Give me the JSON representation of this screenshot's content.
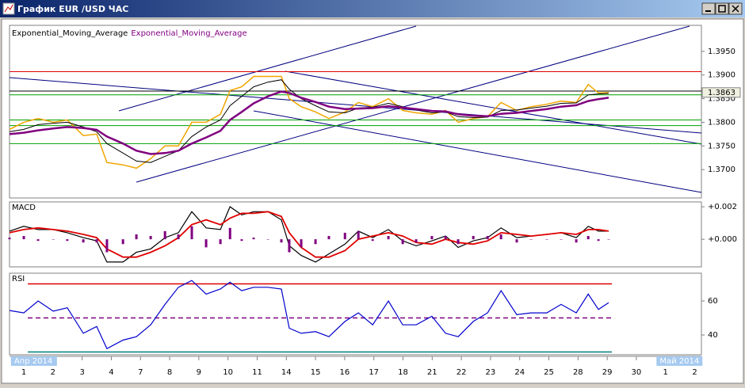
{
  "window": {
    "title": "График EUR /USD ЧАС"
  },
  "chart_data": [
    {
      "type": "line",
      "x": [
        -0.49,
        0,
        0.49,
        1.01,
        1.49,
        2.04,
        2.5,
        2.85,
        3.4,
        3.86,
        4.35,
        4.84,
        5.3,
        5.76,
        6.25,
        6.74,
        7.07,
        7.47,
        7.88,
        8.37,
        8.83,
        9.1,
        9.51,
        10,
        10.46,
        11.01,
        11.47,
        11.96,
        12.5,
        12.99,
        13.45,
        13.99,
        14.46,
        14.89,
        15.41,
        15.9,
        16.36,
        16.9,
        17.39,
        17.93,
        18.42,
        18.94,
        19.35,
        19.7,
        20.05
      ],
      "xlim": [
        -0.49,
        23.23
      ],
      "xticks": [
        {
          "value": 0,
          "label": "1"
        },
        {
          "value": 1,
          "label": "2"
        },
        {
          "value": 2,
          "label": "3"
        },
        {
          "value": 3,
          "label": "4"
        },
        {
          "value": 4,
          "label": "7"
        },
        {
          "value": 5,
          "label": "8"
        },
        {
          "value": 6,
          "label": "9"
        },
        {
          "value": 7,
          "label": "10"
        },
        {
          "value": 8,
          "label": "11"
        },
        {
          "value": 9,
          "label": "14"
        },
        {
          "value": 10,
          "label": "15"
        },
        {
          "value": 11,
          "label": "16"
        },
        {
          "value": 12,
          "label": "17"
        },
        {
          "value": 13,
          "label": "18"
        },
        {
          "value": 14,
          "label": "21"
        },
        {
          "value": 15,
          "label": "22"
        },
        {
          "value": 16,
          "label": "23"
        },
        {
          "value": 17,
          "label": "24"
        },
        {
          "value": 18,
          "label": "25"
        },
        {
          "value": 19,
          "label": "28"
        },
        {
          "value": 20,
          "label": "29"
        },
        {
          "value": 21,
          "label": "30"
        },
        {
          "value": 22,
          "label": "1"
        },
        {
          "value": 23,
          "label": "2"
        }
      ],
      "x_periods": [
        {
          "value": -0.44,
          "label": "Апр 2014"
        },
        {
          "value": 21.69,
          "label": "Май 2014"
        }
      ],
      "series": [
        {
          "color": "#f0a500",
          "values": [
            1.3785,
            1.38,
            1.3808,
            1.38,
            1.3805,
            1.3772,
            1.3775,
            1.3715,
            1.371,
            1.3703,
            1.3723,
            1.375,
            1.375,
            1.38,
            1.38,
            1.3817,
            1.3867,
            1.3875,
            1.3897,
            1.3897,
            1.3897,
            1.385,
            1.3833,
            1.3822,
            1.3808,
            1.3822,
            1.3842,
            1.3833,
            1.385,
            1.3825,
            1.382,
            1.3817,
            1.3825,
            1.38,
            1.3808,
            1.3812,
            1.3842,
            1.3825,
            1.3833,
            1.3838,
            1.3845,
            1.3842,
            1.388,
            1.3862,
            1.3863
          ]
        },
        {
          "name": "Exponential_Moving_Average",
          "color": "#000000",
          "values": [
            1.378,
            1.3785,
            1.3795,
            1.3798,
            1.38,
            1.379,
            1.378,
            1.3755,
            1.3735,
            1.3718,
            1.3715,
            1.3728,
            1.374,
            1.377,
            1.379,
            1.3805,
            1.3835,
            1.3855,
            1.3875,
            1.3885,
            1.389,
            1.387,
            1.385,
            1.3835,
            1.3822,
            1.382,
            1.383,
            1.3832,
            1.384,
            1.3833,
            1.3826,
            1.382,
            1.3822,
            1.3812,
            1.381,
            1.3811,
            1.3825,
            1.3826,
            1.383,
            1.3834,
            1.384,
            1.3841,
            1.3858,
            1.386,
            1.3861
          ]
        },
        {
          "name": "Exponential_Moving_Average",
          "color": "#800080",
          "values": [
            1.3775,
            1.3778,
            1.3783,
            1.3787,
            1.379,
            1.3788,
            1.3784,
            1.377,
            1.3755,
            1.374,
            1.3733,
            1.3735,
            1.374,
            1.3755,
            1.3768,
            1.3782,
            1.3805,
            1.3822,
            1.384,
            1.3855,
            1.3865,
            1.3862,
            1.3852,
            1.3843,
            1.3833,
            1.3828,
            1.3829,
            1.383,
            1.3834,
            1.3831,
            1.3828,
            1.3824,
            1.3823,
            1.3817,
            1.3814,
            1.3813,
            1.3818,
            1.382,
            1.3824,
            1.3828,
            1.3833,
            1.3836,
            1.3845,
            1.3849,
            1.3852
          ]
        }
      ],
      "ylim": [
        1.364,
        1.4005
      ],
      "yticks": [
        {
          "value": 1.37,
          "label": "1.3700"
        },
        {
          "value": 1.375,
          "label": "1.3750"
        },
        {
          "value": 1.38,
          "label": "1.3800"
        },
        {
          "value": 1.385,
          "label": "1.3850"
        },
        {
          "value": 1.39,
          "label": "1.3900"
        },
        {
          "value": 1.395,
          "label": "1.3950"
        }
      ],
      "hlines": [
        {
          "value": 1.3907,
          "color": "#e00000"
        },
        {
          "value": 1.3866,
          "color": "#000000"
        },
        {
          "value": 1.3858,
          "color": "#00a000"
        },
        {
          "value": 1.3805,
          "color": "#00a000"
        },
        {
          "value": 1.3793,
          "color": "#00a000"
        },
        {
          "value": 1.3755,
          "color": "#00a000"
        }
      ],
      "last_price": 1.3863
    },
    {
      "type": "macd",
      "title": "MACD",
      "series": [
        {
          "color": "#000000",
          "values": [
            0.0005,
            0.0008,
            0.0006,
            0.0006,
            0.0004,
            0.0001,
            -0.0001,
            -0.0014,
            -0.0014,
            -0.0008,
            -0.0006,
            0.0001,
            0.0004,
            0.0017,
            0.0007,
            0.0006,
            0.002,
            0.0015,
            0.0017,
            0.0017,
            0.0012,
            -0.0004,
            -0.001,
            -0.0014,
            -0.0009,
            -0.0003,
            0.0005,
            0.0001,
            0.0006,
            -0.0001,
            -0.0004,
            -0.0001,
            0.0002,
            -0.0005,
            -0.0001,
            0.0001,
            0.0007,
            0.0001,
            0.0002,
            0.0003,
            0.0004,
            0.0001,
            0.0008,
            0.0005,
            0.0005
          ]
        },
        {
          "color": "#e00000",
          "values": [
            0.0004,
            0.0006,
            0.0007,
            0.0006,
            0.0005,
            0.0003,
            0.0001,
            -0.0006,
            -0.0011,
            -0.0011,
            -0.0008,
            -0.0004,
            0.0001,
            0.0009,
            0.0012,
            0.0009,
            0.0013,
            0.0016,
            0.0016,
            0.0017,
            0.0014,
            0.0004,
            -0.0005,
            -0.0011,
            -0.0011,
            -0.0007,
            0,
            0.0002,
            0.0004,
            0.0002,
            -0.0002,
            -0.0003,
            0,
            -0.0002,
            -0.0003,
            -0.0001,
            0.0004,
            0.0003,
            0.0002,
            0.0003,
            0.0004,
            0.0003,
            0.0006,
            0.0006,
            0.0005
          ]
        },
        {
          "kind": "bar",
          "color": "#800080",
          "values": [
            0.0001,
            0.0002,
            -0.0001,
            0,
            -0.0001,
            -0.0002,
            -0.0002,
            -0.0008,
            -0.0003,
            0.0003,
            0.0002,
            0.0005,
            0.0003,
            0.0008,
            -0.0005,
            -0.0003,
            0.0007,
            -0.0001,
            0.0001,
            0,
            -0.0002,
            -0.0008,
            -0.0005,
            -0.0003,
            0.0002,
            0.0004,
            0.0005,
            -0.0001,
            0.0002,
            -0.0003,
            -0.0002,
            0.0002,
            0.0002,
            -0.0003,
            0.0002,
            0.0002,
            0.0003,
            -0.0002,
            0,
            0,
            0,
            -0.0002,
            0.0002,
            -0.0001,
            0
          ]
        }
      ],
      "ylim": [
        -0.0017,
        0.0023
      ],
      "yticks": [
        {
          "value": 0,
          "label": "+0.000"
        },
        {
          "value": 0.002,
          "label": "+0.002"
        }
      ]
    },
    {
      "type": "rsi",
      "title": "RSI",
      "series": [
        {
          "color": "#0000cc",
          "values": [
            54.4,
            53,
            60,
            54,
            56,
            41,
            45,
            32,
            37,
            39,
            46,
            58,
            68,
            72,
            64,
            67,
            71,
            66,
            68,
            68,
            67,
            44,
            41,
            42,
            39,
            48,
            53,
            46,
            60,
            46,
            46,
            51,
            41,
            39,
            48,
            53,
            66,
            52,
            53,
            53,
            58,
            53,
            64,
            55,
            59
          ]
        }
      ],
      "ylim": [
        28.4,
        76.3
      ],
      "yticks": [
        40,
        60
      ],
      "hlines": [
        {
          "value": 70,
          "color": "#e00000"
        },
        {
          "value": 50,
          "color": "#800080",
          "dash": true
        },
        {
          "value": 30,
          "color": "#008080"
        }
      ]
    }
  ]
}
